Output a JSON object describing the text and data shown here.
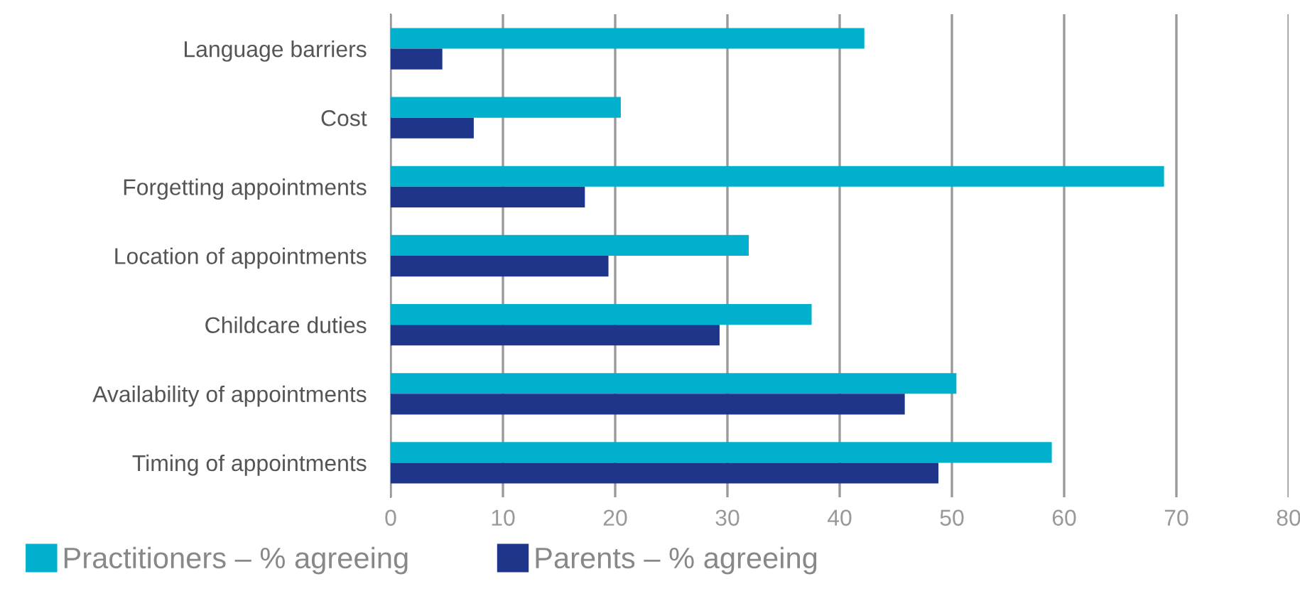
{
  "chart_data": {
    "type": "bar",
    "orientation": "horizontal",
    "categories": [
      "Language barriers",
      "Cost",
      "Forgetting appointments",
      "Location of appointments",
      "Childcare duties",
      "Availability of appointments",
      "Timing of appointments"
    ],
    "series": [
      {
        "name": "Practitioners – % agreeing",
        "color": "#00b0cc",
        "values": [
          42.2,
          20.5,
          68.9,
          31.9,
          37.5,
          50.4,
          58.9
        ]
      },
      {
        "name": "Parents – % agreeing",
        "color": "#1e358a",
        "values": [
          4.6,
          7.4,
          17.3,
          19.4,
          29.3,
          45.8,
          48.8
        ]
      }
    ],
    "xlim": [
      0,
      80
    ],
    "xticks": [
      0,
      10,
      20,
      30,
      40,
      50,
      60,
      70,
      80
    ],
    "grid": "x",
    "legend": "bottom left"
  }
}
